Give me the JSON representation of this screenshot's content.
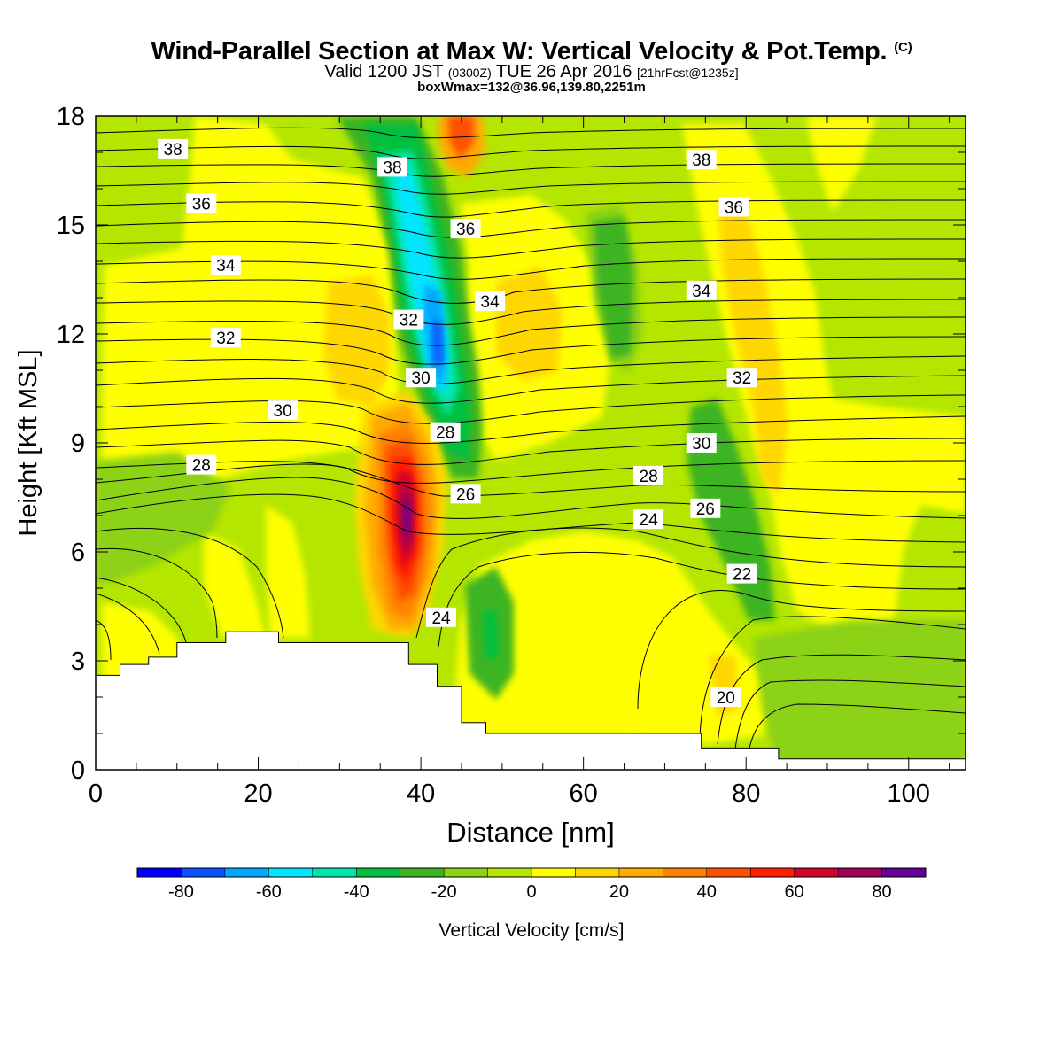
{
  "title": {
    "main": "Wind-Parallel Section at Max W: Vertical Velocity & Pot.Temp.",
    "copyright": "(C)",
    "valid_prefix": "Valid 1200 JST",
    "valid_utc": "(0300Z)",
    "valid_date": "TUE 26 Apr 2016",
    "forecast": "[21hrFcst@1235z]",
    "box_info": "boxWmax=132@36.96,139.80,2251m"
  },
  "chart_data": {
    "type": "heatmap",
    "xlabel": "Distance [nm]",
    "ylabel": "Height [Kft MSL]",
    "xlim": [
      0,
      107
    ],
    "ylim": [
      0,
      18
    ],
    "x_ticks": [
      0,
      20,
      40,
      60,
      80,
      100
    ],
    "y_ticks": [
      0,
      3,
      6,
      9,
      12,
      15,
      18
    ],
    "grid": false,
    "colorbar": {
      "label": "Vertical Velocity [cm/s]",
      "placement": "bottom",
      "bounds": [
        -90,
        90
      ],
      "tick_values": [
        -80,
        -60,
        -40,
        -20,
        0,
        20,
        40,
        60,
        80
      ],
      "tick_labels": [
        "-80",
        "-60",
        "-40",
        "-20",
        "0",
        "20",
        "40",
        "60",
        "80"
      ],
      "colors": [
        "#0000ff",
        "#0a52ff",
        "#00a8ff",
        "#00e6ff",
        "#00e6aa",
        "#00c040",
        "#3cb424",
        "#8cd214",
        "#b4e600",
        "#ffff00",
        "#ffd700",
        "#ffaa00",
        "#ff8200",
        "#ff5000",
        "#ff1e00",
        "#d2002a",
        "#a0005a",
        "#640096"
      ]
    },
    "terrain_kft": [
      [
        0,
        2.6
      ],
      [
        3,
        2.6
      ],
      [
        3,
        2.9
      ],
      [
        6.5,
        2.9
      ],
      [
        6.5,
        3.1
      ],
      [
        10,
        3.1
      ],
      [
        10,
        3.5
      ],
      [
        16,
        3.5
      ],
      [
        16,
        3.8
      ],
      [
        22.5,
        3.8
      ],
      [
        22.5,
        3.5
      ],
      [
        38.5,
        3.5
      ],
      [
        38.5,
        2.9
      ],
      [
        42,
        2.9
      ],
      [
        42,
        2.3
      ],
      [
        45,
        2.3
      ],
      [
        45,
        1.3
      ],
      [
        48,
        1.3
      ],
      [
        48,
        1.0
      ],
      [
        74.5,
        1.0
      ],
      [
        74.5,
        0.6
      ],
      [
        84,
        0.6
      ],
      [
        84,
        0.3
      ],
      [
        107,
        0.3
      ]
    ],
    "theta_contour_labels": [
      {
        "value": "38",
        "x": 9.5,
        "y": 17.1
      },
      {
        "value": "38",
        "x": 36.5,
        "y": 16.6
      },
      {
        "value": "38",
        "x": 74.5,
        "y": 16.8
      },
      {
        "value": "36",
        "x": 13,
        "y": 15.6
      },
      {
        "value": "36",
        "x": 45.5,
        "y": 14.9
      },
      {
        "value": "36",
        "x": 78.5,
        "y": 15.5
      },
      {
        "value": "34",
        "x": 16,
        "y": 13.9
      },
      {
        "value": "34",
        "x": 48.5,
        "y": 12.9
      },
      {
        "value": "34",
        "x": 74.5,
        "y": 13.2
      },
      {
        "value": "32",
        "x": 16,
        "y": 11.9
      },
      {
        "value": "32",
        "x": 38.5,
        "y": 12.4
      },
      {
        "value": "32",
        "x": 79.5,
        "y": 10.8
      },
      {
        "value": "30",
        "x": 23,
        "y": 9.9
      },
      {
        "value": "30",
        "x": 40,
        "y": 10.8
      },
      {
        "value": "30",
        "x": 74.5,
        "y": 9.0
      },
      {
        "value": "28",
        "x": 13,
        "y": 8.4
      },
      {
        "value": "28",
        "x": 43,
        "y": 9.3
      },
      {
        "value": "28",
        "x": 68,
        "y": 8.1
      },
      {
        "value": "26",
        "x": 45.5,
        "y": 7.6
      },
      {
        "value": "26",
        "x": 75,
        "y": 7.2
      },
      {
        "value": "24",
        "x": 68,
        "y": 6.9
      },
      {
        "value": "24",
        "x": 42.5,
        "y": 4.2
      },
      {
        "value": "22",
        "x": 79.5,
        "y": 5.4
      },
      {
        "value": "20",
        "x": 77.5,
        "y": 2.0
      }
    ]
  }
}
